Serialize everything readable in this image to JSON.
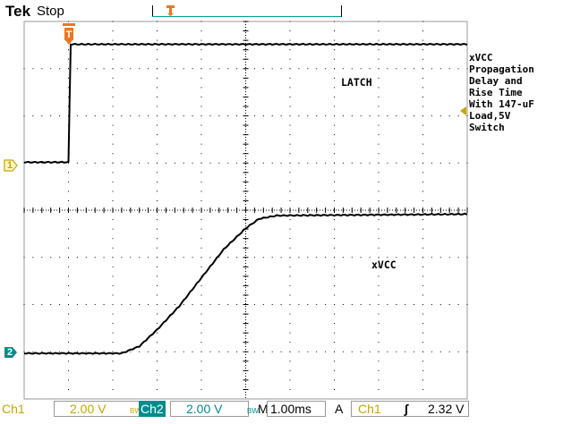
{
  "header": {
    "brand": "Tek",
    "run_state": "Stop"
  },
  "markers": {
    "trigger_position_label": "T",
    "ch1_label": "1",
    "ch2_label": "2"
  },
  "annotations": {
    "title_block": "xVCC\nPropagation\nDelay and\nRise Time\nWith 147-uF\nLoad,5V\nSwitch",
    "ch1_trace_label": "LATCH",
    "ch2_trace_label": "xVCC"
  },
  "status": {
    "ch1_name": "Ch1",
    "ch1_scale": "2.00 V",
    "ch1_bw": "BW",
    "ch2_name": "Ch2",
    "ch2_scale": "2.00 V",
    "ch2_bw": "BW",
    "timebase_prefix": "M",
    "timebase": "1.00ms",
    "trigger_mode": "A",
    "trigger_source": "Ch1",
    "trigger_slope": "∫",
    "trigger_level": "2.32 V"
  },
  "colors": {
    "ch1": "#c9a400",
    "ch2": "#008c8c",
    "trigger": "#e87722",
    "grid": "#000000"
  },
  "chart_data": {
    "type": "line",
    "x_divisions": 10,
    "y_divisions": 8,
    "series": [
      {
        "name": "LATCH",
        "x_ms": [
          0,
          1.0,
          1.05,
          10
        ],
        "values_div": [
          0.05,
          0.05,
          2.55,
          2.55
        ]
      },
      {
        "name": "xVCC",
        "x_ms": [
          0,
          2.2,
          2.6,
          3.0,
          3.5,
          4.0,
          4.5,
          5.0,
          5.3,
          5.7,
          10
        ],
        "values_div": [
          0.0,
          0.0,
          0.15,
          0.5,
          1.0,
          1.6,
          2.2,
          2.65,
          2.85,
          2.92,
          2.95
        ]
      }
    ]
  }
}
